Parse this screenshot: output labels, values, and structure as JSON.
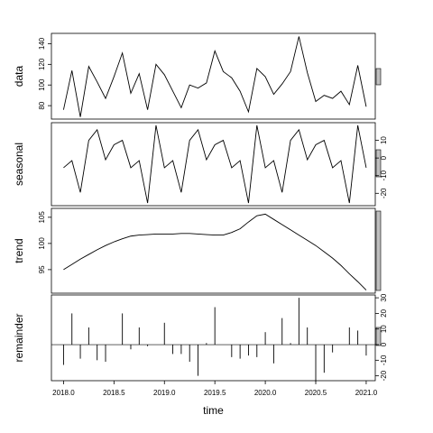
{
  "chart_data": [
    {
      "type": "line",
      "ylabel": "data",
      "yaxis": "left",
      "color": "#000000",
      "x": [
        2018,
        2018.0833,
        2018.1667,
        2018.25,
        2018.3333,
        2018.4167,
        2018.5,
        2018.5833,
        2018.6667,
        2018.75,
        2018.8333,
        2018.9167,
        2019,
        2019.0833,
        2019.1667,
        2019.25,
        2019.3333,
        2019.4167,
        2019.5,
        2019.5833,
        2019.6667,
        2019.75,
        2019.8333,
        2019.9167,
        2020,
        2020.0833,
        2020.1667,
        2020.25,
        2020.3333,
        2020.4167,
        2020.5,
        2020.5833,
        2020.6667,
        2020.75,
        2020.8333,
        2020.9167,
        2021
      ],
      "values": [
        76,
        114,
        69,
        118,
        103,
        87,
        108,
        131,
        92,
        111,
        76,
        120,
        110,
        94,
        78,
        100,
        97,
        102,
        133,
        113,
        107,
        94,
        74,
        116,
        108,
        91,
        101,
        113,
        147,
        112,
        84,
        90,
        87,
        94,
        81,
        119,
        79
      ],
      "xlim": [
        2017.88,
        2021.09
      ],
      "ylim": [
        67,
        150
      ],
      "yticks": [
        80,
        100,
        120,
        140
      ]
    },
    {
      "type": "line",
      "ylabel": "seasonal",
      "yaxis": "right",
      "color": "#000000",
      "x": [
        2018,
        2018.0833,
        2018.1667,
        2018.25,
        2018.3333,
        2018.4167,
        2018.5,
        2018.5833,
        2018.6667,
        2018.75,
        2018.8333,
        2018.9167,
        2019,
        2019.0833,
        2019.1667,
        2019.25,
        2019.3333,
        2019.4167,
        2019.5,
        2019.5833,
        2019.6667,
        2019.75,
        2019.8333,
        2019.9167,
        2020,
        2020.0833,
        2020.1667,
        2020.25,
        2020.3333,
        2020.4167,
        2020.5,
        2020.5833,
        2020.6667,
        2020.75,
        2020.8333,
        2020.9167,
        2021
      ],
      "values": [
        -5.5,
        -1.5,
        -19.5,
        10,
        16,
        -1,
        7.5,
        10,
        -5.5,
        -1.5,
        -25.5,
        18.5,
        -5.5,
        -1.5,
        -19.5,
        10,
        16,
        -1,
        7.5,
        10,
        -5.5,
        -1.5,
        -25.5,
        18.5,
        -5.5,
        -1.5,
        -19.5,
        10,
        16,
        -1,
        7.5,
        10,
        -5.5,
        -1.5,
        -25.5,
        18.5,
        -5.5
      ],
      "xlim": [
        2017.88,
        2021.09
      ],
      "ylim": [
        -27,
        20
      ],
      "yticks": [
        -20,
        -10,
        0,
        10
      ]
    },
    {
      "type": "line",
      "ylabel": "trend",
      "yaxis": "left",
      "color": "#000000",
      "x": [
        2018,
        2018.0833,
        2018.1667,
        2018.25,
        2018.3333,
        2018.4167,
        2018.5,
        2018.5833,
        2018.6667,
        2018.75,
        2018.8333,
        2018.9167,
        2019,
        2019.0833,
        2019.1667,
        2019.25,
        2019.3333,
        2019.4167,
        2019.5,
        2019.5833,
        2019.6667,
        2019.75,
        2019.8333,
        2019.9167,
        2020,
        2020.0833,
        2020.1667,
        2020.25,
        2020.3333,
        2020.4167,
        2020.5,
        2020.5833,
        2020.6667,
        2020.75,
        2020.8333,
        2020.9167,
        2021
      ],
      "values": [
        95,
        96,
        97,
        97.9,
        98.8,
        99.6,
        100.3,
        100.9,
        101.4,
        101.6,
        101.7,
        101.8,
        101.8,
        101.8,
        101.9,
        101.9,
        101.8,
        101.7,
        101.6,
        101.6,
        102.1,
        102.8,
        104.1,
        105.3,
        105.6,
        104.6,
        103.6,
        102.6,
        101.6,
        100.6,
        99.6,
        98.4,
        97.2,
        95.8,
        94.2,
        92.7,
        91.1
      ],
      "xlim": [
        2017.88,
        2021.09
      ],
      "ylim": [
        90.5,
        106.7
      ],
      "yticks": [
        95,
        100,
        105
      ]
    },
    {
      "type": "bar",
      "ylabel": "remainder",
      "yaxis": "right",
      "color": "#000000",
      "xlabel": "time",
      "x": [
        2018,
        2018.0833,
        2018.1667,
        2018.25,
        2018.3333,
        2018.4167,
        2018.5,
        2018.5833,
        2018.6667,
        2018.75,
        2018.8333,
        2018.9167,
        2019,
        2019.0833,
        2019.1667,
        2019.25,
        2019.3333,
        2019.4167,
        2019.5,
        2019.5833,
        2019.6667,
        2019.75,
        2019.8333,
        2019.9167,
        2020,
        2020.0833,
        2020.1667,
        2020.25,
        2020.3333,
        2020.4167,
        2020.5,
        2020.5833,
        2020.6667,
        2020.75,
        2020.8333,
        2020.9167,
        2021
      ],
      "values": [
        -13,
        20,
        -9,
        11,
        -10,
        -11,
        0,
        20,
        -3,
        11,
        -1,
        0,
        14,
        -6,
        -6,
        -11,
        -20,
        1,
        24,
        0,
        -8,
        -9,
        -7,
        -8,
        8,
        -12,
        17,
        1,
        30,
        11,
        -24,
        -18,
        -5,
        0,
        11,
        9,
        -7
      ],
      "xlim": [
        2017.88,
        2021.09
      ],
      "ylim": [
        -23.1,
        31.8
      ],
      "yticks": [
        -20,
        -10,
        0,
        10,
        20,
        30
      ],
      "xticks": [
        {
          "value": 2018,
          "label": "2018.0"
        },
        2018.5,
        {
          "value": 2019,
          "label": "2019.0"
        },
        2019.5,
        {
          "value": 2020,
          "label": "2020.0"
        },
        2020.5,
        {
          "value": 2021,
          "label": "2021.0"
        }
      ]
    }
  ]
}
